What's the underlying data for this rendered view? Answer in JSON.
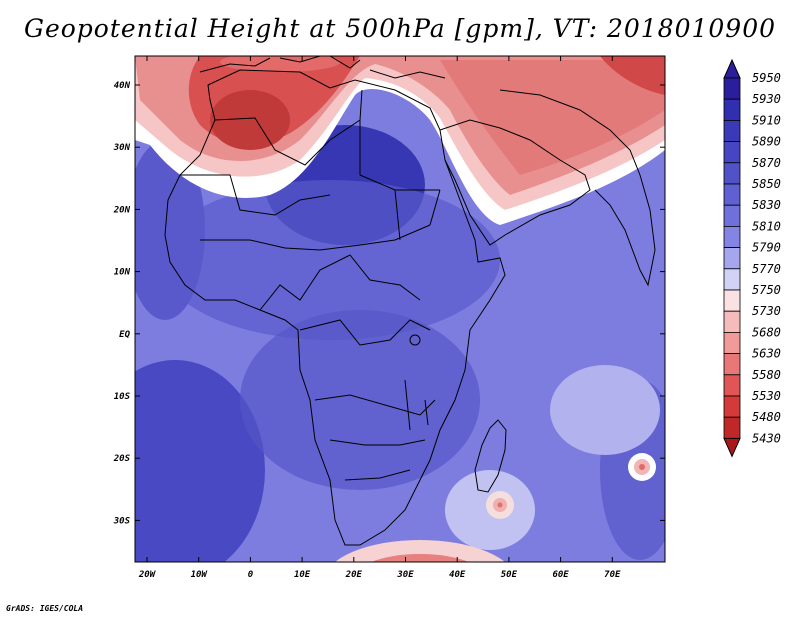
{
  "title": "Geopotential Height at 500hPa [gpm], VT: 2018010900",
  "credit": "GrADS: IGES/COLA",
  "axes": {
    "x_ticks": [
      "20W",
      "10W",
      "0",
      "10E",
      "20E",
      "30E",
      "40E",
      "50E",
      "60E",
      "70E"
    ],
    "y_ticks": [
      "40N",
      "30N",
      "20N",
      "10N",
      "EQ",
      "10S",
      "20S",
      "30S"
    ]
  },
  "colorbar": {
    "levels": [
      "5950",
      "5930",
      "5910",
      "5890",
      "5870",
      "5850",
      "5830",
      "5810",
      "5790",
      "5770",
      "5750",
      "5730",
      "5680",
      "5630",
      "5580",
      "5530",
      "5480",
      "5430"
    ],
    "colors": [
      "#2a1e9c",
      "#2f2fb0",
      "#3a3ab8",
      "#4646c2",
      "#5252c8",
      "#6060d2",
      "#7070dc",
      "#8484e4",
      "#a6a6ee",
      "#d2d2f6",
      "#fbe2e2",
      "#f6bcbc",
      "#f09a9a",
      "#e87878",
      "#e05656",
      "#d43a3a",
      "#c02828",
      "#a81818"
    ]
  },
  "map_colors": {
    "background": "#8080e2",
    "land": "#5a5acc",
    "border": "#000000"
  }
}
